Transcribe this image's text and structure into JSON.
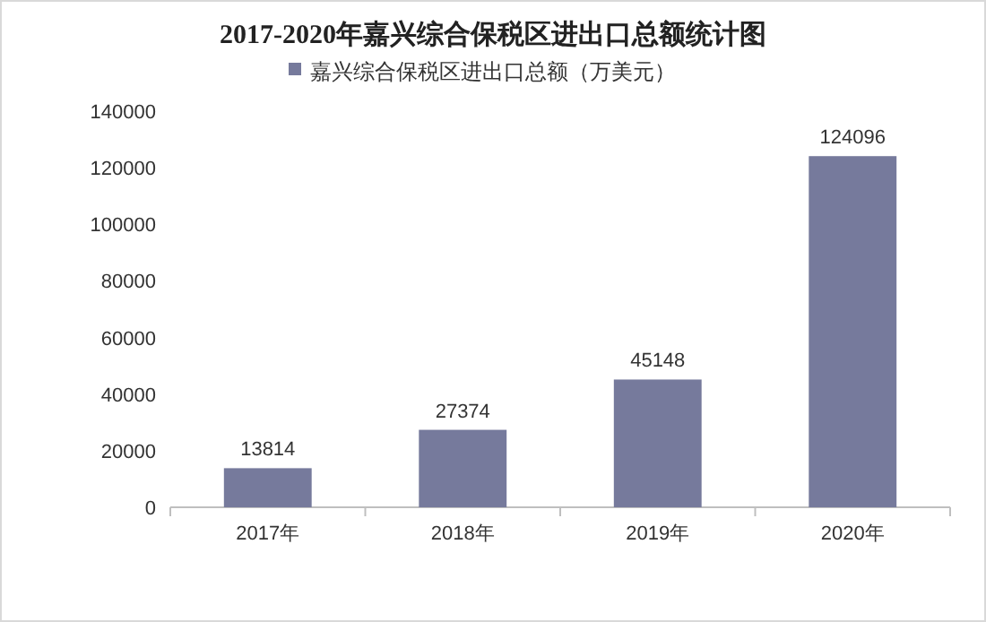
{
  "chart_data": {
    "type": "bar",
    "title": "2017-2020年嘉兴综合保税区进出口总额统计图",
    "categories": [
      "2017年",
      "2018年",
      "2019年",
      "2020年"
    ],
    "series": [
      {
        "name": "嘉兴综合保税区进出口总额（万美元）",
        "color": "#767a9c",
        "values": [
          13814,
          27374,
          45148,
          124096
        ]
      }
    ],
    "ylim": [
      0,
      140000
    ],
    "yticks": [
      0,
      20000,
      40000,
      60000,
      80000,
      100000,
      120000,
      140000
    ],
    "data_labels": true,
    "legend": "top",
    "grid": false
  }
}
